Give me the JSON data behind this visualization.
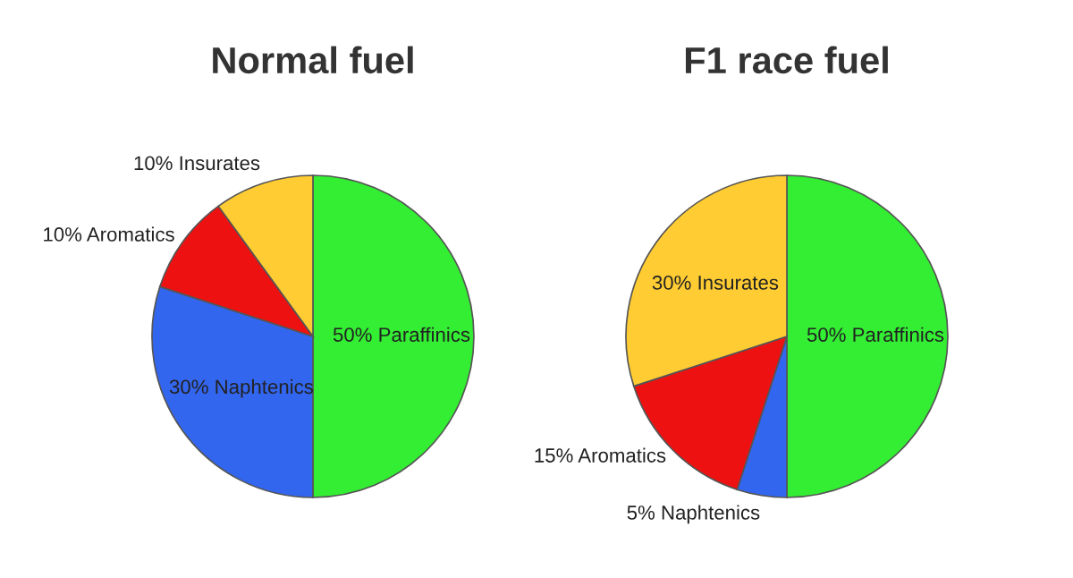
{
  "chart_data": [
    {
      "type": "pie",
      "title": "Normal fuel",
      "categories": [
        "50% Paraffinics",
        "30% Naphtenics",
        "10% Aromatics",
        "10% Insurates"
      ],
      "values": [
        50,
        30,
        10,
        10
      ],
      "colors": [
        "#33ee33",
        "#3366ee",
        "#ee1111",
        "#ffcc33"
      ]
    },
    {
      "type": "pie",
      "title": "F1 race fuel",
      "categories": [
        "50% Paraffinics",
        "5% Naphtenics",
        "15% Aromatics",
        "30% Insurates"
      ],
      "values": [
        50,
        5,
        15,
        30
      ],
      "colors": [
        "#33ee33",
        "#3366ee",
        "#ee1111",
        "#ffcc33"
      ]
    }
  ]
}
